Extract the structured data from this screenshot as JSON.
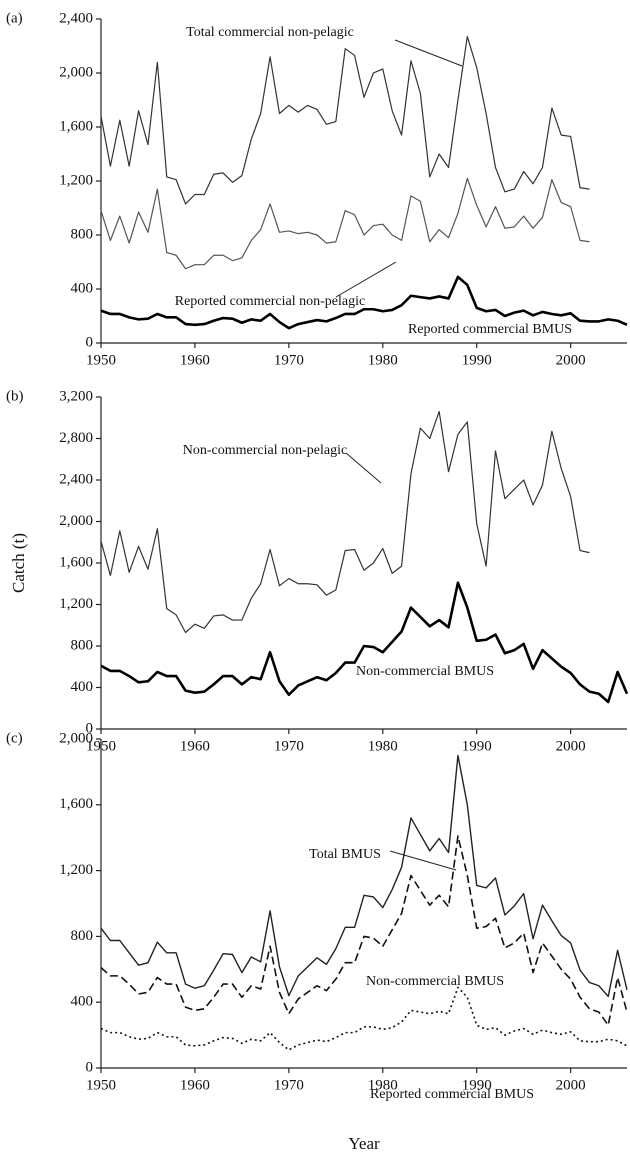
{
  "chart_data": [
    {
      "type": "line",
      "panel_label": "(a)",
      "xlim": [
        1950,
        2006
      ],
      "xticks": [
        1950,
        1960,
        1970,
        1980,
        1990,
        2000
      ],
      "ylim": [
        0,
        2400
      ],
      "yticks": [
        0,
        400,
        800,
        {
          "value": 1200,
          "label": "1,200"
        },
        {
          "value": 1600,
          "label": "1,600"
        },
        {
          "value": 2000,
          "label": "2,000"
        },
        {
          "value": 2400,
          "label": "2,400"
        }
      ],
      "x": [
        1950,
        1951,
        1952,
        1953,
        1954,
        1955,
        1956,
        1957,
        1958,
        1959,
        1960,
        1961,
        1962,
        1963,
        1964,
        1965,
        1966,
        1967,
        1968,
        1969,
        1970,
        1971,
        1972,
        1973,
        1974,
        1975,
        1976,
        1977,
        1978,
        1979,
        1980,
        1981,
        1982,
        1983,
        1984,
        1985,
        1986,
        1987,
        1988,
        1989,
        1990,
        1991,
        1992,
        1993,
        1994,
        1995,
        1996,
        1997,
        1998,
        1999,
        2000,
        2001,
        2002,
        2003,
        2004,
        2005,
        2006
      ],
      "series": [
        {
          "name": "Total commercial non-pelagic",
          "color": "#333333",
          "dash": "solid",
          "width": 1.2,
          "values": [
            1680,
            1310,
            1650,
            1310,
            1720,
            1470,
            2080,
            1230,
            1210,
            1030,
            1100,
            1100,
            1250,
            1260,
            1190,
            1240,
            1510,
            1700,
            2120,
            1700,
            1760,
            1710,
            1760,
            1730,
            1620,
            1640,
            2180,
            2130,
            1820,
            2000,
            2030,
            1720,
            1540,
            2090,
            1850,
            1230,
            1400,
            1300,
            1800,
            2270,
            2040,
            1700,
            1300,
            1120,
            1140,
            1270,
            1180,
            1300,
            1740,
            1540,
            1530,
            1150,
            1140,
            null,
            null,
            null,
            null
          ]
        },
        {
          "name": "Reported commercial non-pelagic",
          "color": "#555555",
          "dash": "solid",
          "width": 1.2,
          "values": [
            980,
            760,
            940,
            740,
            970,
            820,
            1140,
            670,
            650,
            550,
            580,
            580,
            650,
            650,
            610,
            630,
            760,
            840,
            1030,
            820,
            830,
            810,
            820,
            800,
            740,
            750,
            980,
            950,
            800,
            870,
            880,
            800,
            760,
            1090,
            1050,
            750,
            840,
            780,
            960,
            1220,
            1020,
            860,
            1010,
            850,
            860,
            940,
            850,
            930,
            1210,
            1040,
            1010,
            760,
            750,
            null,
            null,
            null,
            null
          ]
        },
        {
          "name": "Reported commercial BMUS",
          "color": "#000000",
          "dash": "solid",
          "width": 2.6,
          "values": [
            240,
            215,
            215,
            190,
            175,
            180,
            215,
            190,
            190,
            140,
            135,
            140,
            165,
            185,
            180,
            150,
            175,
            165,
            215,
            155,
            110,
            140,
            155,
            170,
            160,
            185,
            215,
            215,
            250,
            250,
            235,
            245,
            280,
            350,
            340,
            330,
            345,
            330,
            490,
            430,
            260,
            235,
            245,
            200,
            225,
            240,
            205,
            230,
            215,
            205,
            220,
            165,
            160,
            160,
            175,
            165,
            135
          ]
        }
      ],
      "annotations": [
        {
          "text": "Total commercial non-pelagic"
        },
        {
          "text": "Reported commercial non-pelagic"
        },
        {
          "text": "Reported commercial BMUS"
        }
      ]
    },
    {
      "type": "line",
      "panel_label": "(b)",
      "ylabel": "Catch (t)",
      "xlim": [
        1950,
        2006
      ],
      "xticks": [
        1950,
        1960,
        1970,
        1980,
        1990,
        2000
      ],
      "ylim": [
        0,
        3200
      ],
      "yticks": [
        0,
        400,
        800,
        {
          "value": 1200,
          "label": "1,200"
        },
        {
          "value": 1600,
          "label": "1,600"
        },
        {
          "value": 2000,
          "label": "2,000"
        },
        {
          "value": 2400,
          "label": "2,400"
        },
        {
          "value": 2800,
          "label": "2,800"
        },
        {
          "value": 3200,
          "label": "3,200"
        }
      ],
      "x": [
        1950,
        1951,
        1952,
        1953,
        1954,
        1955,
        1956,
        1957,
        1958,
        1959,
        1960,
        1961,
        1962,
        1963,
        1964,
        1965,
        1966,
        1967,
        1968,
        1969,
        1970,
        1971,
        1972,
        1973,
        1974,
        1975,
        1976,
        1977,
        1978,
        1979,
        1980,
        1981,
        1982,
        1983,
        1984,
        1985,
        1986,
        1987,
        1988,
        1989,
        1990,
        1991,
        1992,
        1993,
        1994,
        1995,
        1996,
        1997,
        1998,
        1999,
        2000,
        2001,
        2002,
        2003,
        2004,
        2005,
        2006
      ],
      "series": [
        {
          "name": "Non-commercial non-pelagic",
          "color": "#333333",
          "dash": "solid",
          "width": 1.2,
          "values": [
            1810,
            1480,
            1910,
            1510,
            1760,
            1540,
            1930,
            1160,
            1100,
            930,
            1010,
            970,
            1090,
            1100,
            1050,
            1050,
            1260,
            1400,
            1730,
            1380,
            1450,
            1400,
            1400,
            1390,
            1290,
            1340,
            1720,
            1730,
            1530,
            1600,
            1740,
            1500,
            1570,
            2460,
            2900,
            2800,
            3060,
            2480,
            2840,
            2960,
            1980,
            1570,
            2680,
            2220,
            2310,
            2400,
            2160,
            2350,
            2870,
            2510,
            2240,
            1720,
            1700,
            null,
            null,
            null,
            null
          ]
        },
        {
          "name": "Non-commercial BMUS",
          "color": "#000000",
          "dash": "solid",
          "width": 2.6,
          "values": [
            610,
            560,
            560,
            510,
            450,
            460,
            550,
            510,
            510,
            370,
            350,
            360,
            430,
            510,
            510,
            430,
            500,
            480,
            740,
            460,
            330,
            420,
            460,
            500,
            470,
            540,
            640,
            640,
            800,
            790,
            740,
            840,
            940,
            1170,
            1080,
            990,
            1050,
            980,
            1410,
            1170,
            850,
            860,
            910,
            730,
            760,
            820,
            580,
            760,
            680,
            600,
            540,
            430,
            360,
            340,
            260,
            550,
            340
          ]
        }
      ],
      "annotations": [
        {
          "text": "Non-commercial non-pelagic"
        },
        {
          "text": "Non-commercial BMUS"
        }
      ]
    },
    {
      "type": "line",
      "panel_label": "(c)",
      "xlabel": "Year",
      "xlim": [
        1950,
        2006
      ],
      "xticks": [
        1950,
        1960,
        1970,
        1980,
        1990,
        2000
      ],
      "ylim": [
        0,
        2000
      ],
      "yticks": [
        0,
        400,
        800,
        {
          "value": 1200,
          "label": "1,200"
        },
        {
          "value": 1600,
          "label": "1,600"
        },
        {
          "value": 2000,
          "label": "2,000"
        }
      ],
      "x": [
        1950,
        1951,
        1952,
        1953,
        1954,
        1955,
        1956,
        1957,
        1958,
        1959,
        1960,
        1961,
        1962,
        1963,
        1964,
        1965,
        1966,
        1967,
        1968,
        1969,
        1970,
        1971,
        1972,
        1973,
        1974,
        1975,
        1976,
        1977,
        1978,
        1979,
        1980,
        1981,
        1982,
        1983,
        1984,
        1985,
        1986,
        1987,
        1988,
        1989,
        1990,
        1991,
        1992,
        1993,
        1994,
        1995,
        1996,
        1997,
        1998,
        1999,
        2000,
        2001,
        2002,
        2003,
        2004,
        2005,
        2006
      ],
      "series": [
        {
          "name": "Total BMUS",
          "color": "#222222",
          "dash": "solid",
          "width": 1.4,
          "values": [
            850,
            775,
            775,
            700,
            625,
            640,
            765,
            700,
            700,
            510,
            485,
            500,
            595,
            695,
            690,
            580,
            675,
            645,
            955,
            615,
            440,
            560,
            615,
            670,
            630,
            725,
            855,
            855,
            1050,
            1040,
            975,
            1085,
            1220,
            1520,
            1420,
            1320,
            1395,
            1310,
            1900,
            1600,
            1110,
            1095,
            1155,
            930,
            985,
            1060,
            785,
            990,
            895,
            805,
            760,
            595,
            520,
            500,
            435,
            715,
            475
          ]
        },
        {
          "name": "Non-commercial BMUS",
          "color": "#111111",
          "dash": "dashed",
          "width": 1.6,
          "values": [
            610,
            560,
            560,
            510,
            450,
            460,
            550,
            510,
            510,
            370,
            350,
            360,
            430,
            510,
            510,
            430,
            500,
            480,
            740,
            460,
            330,
            420,
            460,
            500,
            470,
            540,
            640,
            640,
            800,
            790,
            740,
            840,
            940,
            1170,
            1080,
            990,
            1050,
            980,
            1410,
            1170,
            850,
            860,
            910,
            730,
            760,
            820,
            580,
            760,
            680,
            600,
            540,
            430,
            360,
            340,
            260,
            550,
            340
          ]
        },
        {
          "name": "Reported commercial BMUS",
          "color": "#111111",
          "dash": "dotted",
          "width": 1.6,
          "values": [
            240,
            215,
            215,
            190,
            175,
            180,
            215,
            190,
            190,
            140,
            135,
            140,
            165,
            185,
            180,
            150,
            175,
            165,
            215,
            155,
            110,
            140,
            155,
            170,
            160,
            185,
            215,
            215,
            250,
            250,
            235,
            245,
            280,
            350,
            340,
            330,
            345,
            330,
            490,
            430,
            260,
            235,
            245,
            200,
            225,
            240,
            205,
            230,
            215,
            205,
            220,
            165,
            160,
            160,
            175,
            165,
            135
          ]
        }
      ],
      "annotations": [
        {
          "text": "Total BMUS"
        },
        {
          "text": "Non-commercial BMUS"
        },
        {
          "text": "Reported commercial BMUS"
        }
      ]
    }
  ]
}
